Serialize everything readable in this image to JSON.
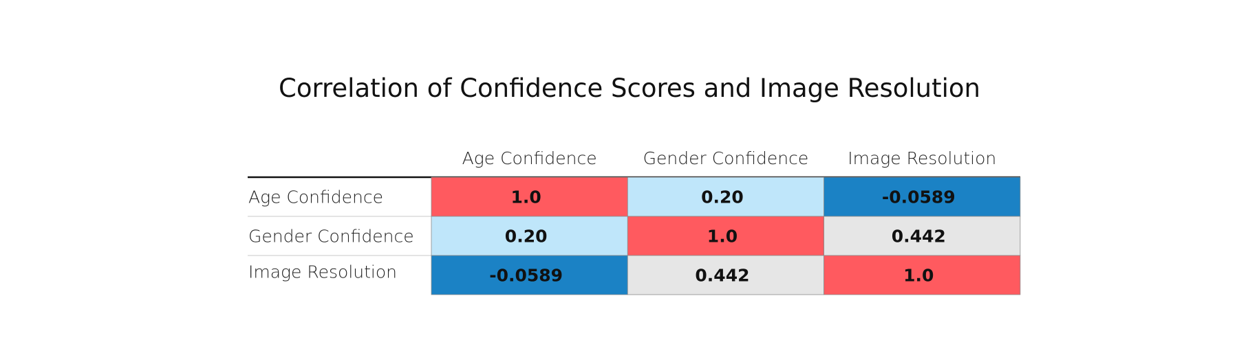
{
  "chart_data": {
    "type": "heatmap",
    "title": "Correlation of Confidence Scores and Image Resolution",
    "columns": [
      "Age Confidence",
      "Gender Confidence",
      "Image Resolution"
    ],
    "rows": [
      "Age Confidence",
      "Gender Confidence",
      "Image Resolution"
    ],
    "values": [
      [
        1.0,
        0.2,
        -0.0589
      ],
      [
        0.2,
        1.0,
        0.442
      ],
      [
        -0.0589,
        0.442,
        1.0
      ]
    ],
    "labels": [
      [
        "1.0",
        "0.20",
        "-0.0589"
      ],
      [
        "0.20",
        "1.0",
        "0.442"
      ],
      [
        "-0.0589",
        "0.442",
        "1.0"
      ]
    ],
    "cell_colors": [
      [
        "#ff5a5f",
        "#bfe6fa",
        "#1b82c5"
      ],
      [
        "#bfe6fa",
        "#ff5a5f",
        "#e6e6e6"
      ],
      [
        "#1b82c5",
        "#e6e6e6",
        "#ff5a5f"
      ]
    ],
    "grid": false
  }
}
